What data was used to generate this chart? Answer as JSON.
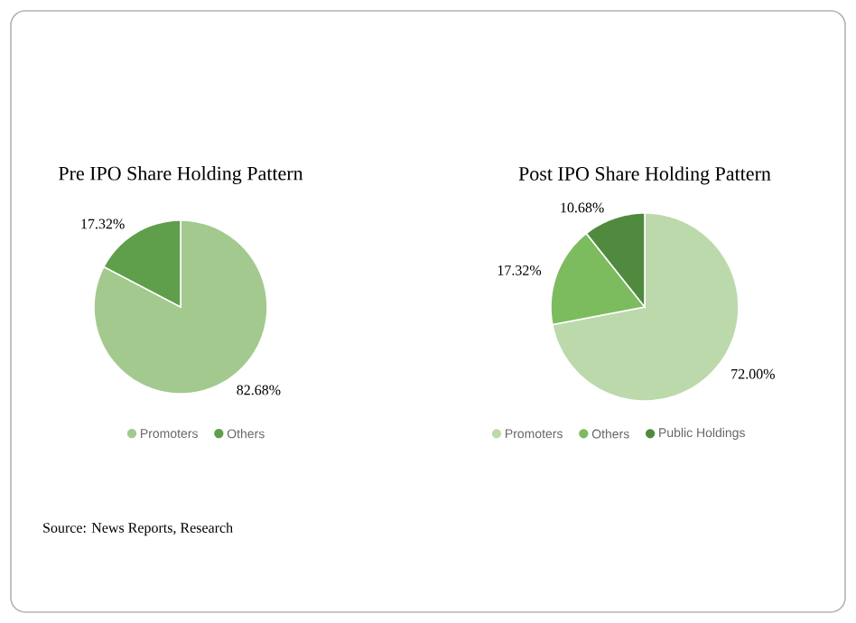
{
  "chart_data": [
    {
      "type": "pie",
      "title": "Pre IPO Share Holding Pattern",
      "categories": [
        "Promoters",
        "Others"
      ],
      "values": [
        82.68,
        17.32
      ],
      "value_labels": [
        "82.68%",
        "17.32%"
      ],
      "colors": [
        "#a3c98f",
        "#5f9e4b"
      ],
      "legend": "bottom",
      "annotations": [
        "Source: News Reports, Research"
      ]
    },
    {
      "type": "pie",
      "title": "Post IPO Share Holding Pattern",
      "categories": [
        "Promoters",
        "Others",
        "Public Holdings"
      ],
      "values": [
        72.0,
        17.32,
        10.68
      ],
      "value_labels": [
        "72.00%",
        "17.32%",
        "10.68%"
      ],
      "colors": [
        "#bcd9ab",
        "#7dbb5f",
        "#4f8a3e"
      ],
      "legend": "bottom"
    }
  ]
}
